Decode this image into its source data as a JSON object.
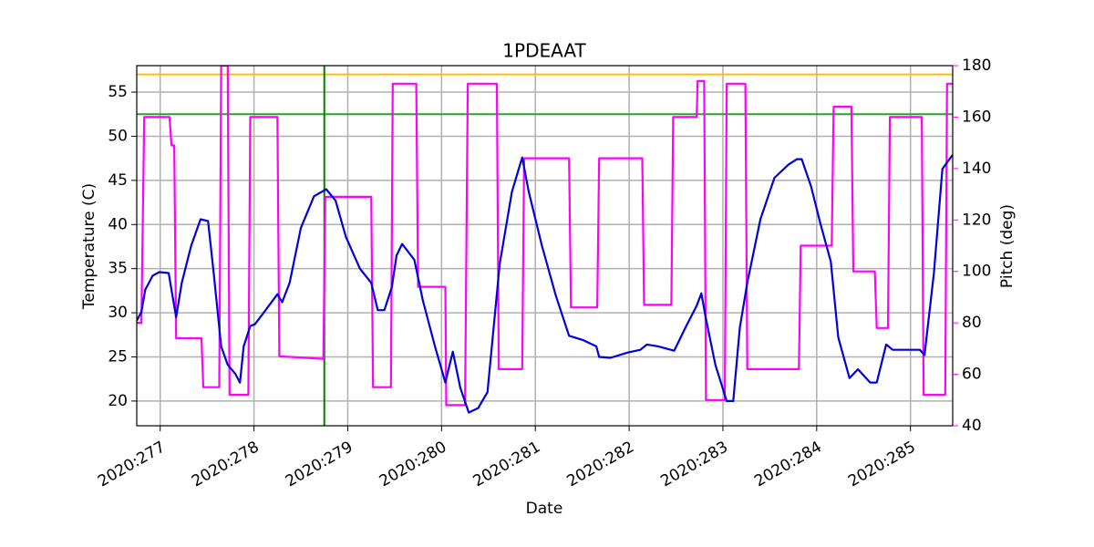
{
  "chart_data": {
    "type": "line",
    "title": "1PDEAAT",
    "xlabel": "Date",
    "ylabel": "Temperature (C)",
    "y2label": "Pitch (deg)",
    "xlim": [
      276.75,
      285.45
    ],
    "xticks": [
      {
        "value": 277,
        "label": "2020:277"
      },
      {
        "value": 278,
        "label": "2020:278"
      },
      {
        "value": 279,
        "label": "2020:279"
      },
      {
        "value": 280,
        "label": "2020:280"
      },
      {
        "value": 281,
        "label": "2020:281"
      },
      {
        "value": 282,
        "label": "2020:282"
      },
      {
        "value": 283,
        "label": "2020:283"
      },
      {
        "value": 284,
        "label": "2020:284"
      },
      {
        "value": 285,
        "label": "2020:285"
      }
    ],
    "ylim": [
      17.2,
      58.0
    ],
    "yticks": [
      20,
      25,
      30,
      35,
      40,
      45,
      50,
      55
    ],
    "y2lim": [
      40,
      180
    ],
    "y2ticks": [
      40,
      60,
      80,
      100,
      120,
      140,
      160,
      180
    ],
    "y2color": "#ff00ff",
    "grid": true,
    "hlines": [
      {
        "value": 57,
        "color": "#ffbf00"
      },
      {
        "value": 52.5,
        "color": "#2ca02c"
      }
    ],
    "vlines": [
      {
        "value": 278.75,
        "color": "#008000"
      }
    ],
    "series": [
      {
        "color": "#ff00ff",
        "axis": "y2",
        "x": [
          276.75,
          276.8,
          276.83,
          277.1,
          277.12,
          277.15,
          277.17,
          277.44,
          277.46,
          277.63,
          277.65,
          277.72,
          277.74,
          277.94,
          277.96,
          278.25,
          278.27,
          278.74,
          278.76,
          279.25,
          279.27,
          279.46,
          279.48,
          279.73,
          279.75,
          280.04,
          280.05,
          280.25,
          280.28,
          280.59,
          280.61,
          280.86,
          280.88,
          281.36,
          281.38,
          281.66,
          281.68,
          282.14,
          282.16,
          282.45,
          282.47,
          282.72,
          282.73,
          282.8,
          282.82,
          283.02,
          283.04,
          283.24,
          283.26,
          283.81,
          283.83,
          284.16,
          284.18,
          284.37,
          284.39,
          284.62,
          284.64,
          284.76,
          284.78,
          285.12,
          285.14,
          285.37,
          285.39,
          285.45
        ],
        "values": [
          80,
          80,
          160,
          160,
          149,
          149,
          74,
          74,
          55,
          55,
          180,
          180,
          52,
          52,
          160,
          160,
          67,
          66,
          129,
          129,
          55,
          55,
          173,
          173,
          94,
          94,
          48,
          48,
          173,
          173,
          62,
          62,
          144,
          144,
          86,
          86,
          144,
          144,
          87,
          87,
          160,
          160,
          174,
          174,
          50,
          50,
          173,
          173,
          62,
          62,
          110,
          110,
          164,
          164,
          100,
          100,
          78,
          78,
          160,
          160,
          52,
          52,
          173,
          173
        ]
      },
      {
        "color": "#0000dd",
        "x": [
          276.75,
          276.8,
          276.84,
          276.92,
          276.99,
          277.09,
          277.17,
          277.23,
          277.33,
          277.43,
          277.51,
          277.57,
          277.65,
          277.72,
          277.8,
          277.85,
          277.89,
          277.96,
          278.01,
          278.11,
          278.25,
          278.3,
          278.38,
          278.5,
          278.64,
          278.77,
          278.87,
          278.98,
          279.13,
          279.25,
          279.32,
          279.39,
          279.47,
          279.52,
          279.58,
          279.71,
          279.8,
          279.93,
          280.04,
          280.12,
          280.2,
          280.29,
          280.39,
          280.49,
          280.62,
          280.75,
          280.86,
          280.93,
          281.07,
          281.22,
          281.36,
          281.51,
          281.65,
          281.68,
          281.8,
          281.99,
          282.12,
          282.19,
          282.31,
          282.48,
          282.6,
          282.72,
          282.77,
          282.82,
          282.92,
          283.04,
          283.11,
          283.18,
          283.26,
          283.4,
          283.55,
          283.7,
          283.79,
          283.84,
          283.94,
          284.04,
          284.15,
          284.23,
          284.35,
          284.44,
          284.57,
          284.64,
          284.74,
          284.81,
          285.1,
          285.15,
          285.25,
          285.34,
          285.45
        ],
        "values": [
          29.1,
          30.1,
          32.6,
          34.2,
          34.6,
          34.5,
          29.5,
          33.4,
          37.6,
          40.6,
          40.4,
          34.5,
          26.2,
          24.1,
          23.1,
          22.1,
          26.2,
          28.5,
          28.7,
          30.1,
          32.1,
          31.2,
          33.4,
          39.6,
          43.2,
          44.0,
          42.7,
          38.6,
          35.0,
          33.4,
          30.3,
          30.3,
          32.9,
          36.5,
          37.8,
          36.0,
          31.4,
          26.2,
          22.1,
          25.6,
          21.5,
          18.7,
          19.2,
          21.0,
          35.5,
          43.7,
          47.6,
          43.7,
          37.6,
          31.9,
          27.4,
          26.9,
          26.2,
          25.0,
          24.9,
          25.5,
          25.8,
          26.4,
          26.2,
          25.7,
          28.3,
          30.8,
          32.2,
          29.3,
          24.1,
          20.0,
          20.0,
          28.3,
          33.4,
          40.6,
          45.3,
          46.8,
          47.4,
          47.4,
          44.3,
          40.1,
          35.8,
          27.2,
          22.6,
          23.6,
          22.1,
          22.1,
          26.4,
          25.8,
          25.8,
          25.2,
          34.5,
          46.3,
          47.9
        ]
      }
    ]
  }
}
